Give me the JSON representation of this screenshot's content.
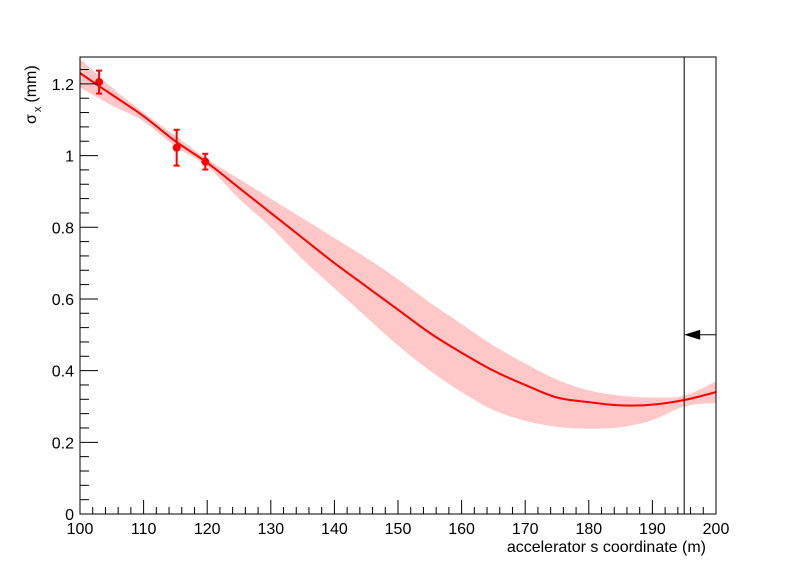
{
  "chart_data": {
    "type": "line",
    "title": "",
    "xlabel": "accelerator s coordinate (m)",
    "ylabel": {
      "symbol": "σ",
      "subscript": "x",
      "unit": "(mm)"
    },
    "xlim": [
      100,
      200
    ],
    "ylim": [
      0,
      1.275
    ],
    "x_ticks": [
      100,
      110,
      120,
      130,
      140,
      150,
      160,
      170,
      180,
      190,
      200
    ],
    "y_ticks": [
      0,
      0.2,
      0.4,
      0.6,
      0.8,
      1,
      1.2
    ],
    "x_tick_labels": [
      "100",
      "110",
      "120",
      "130",
      "140",
      "150",
      "160",
      "170",
      "180",
      "190",
      "200"
    ],
    "y_tick_labels": [
      "0",
      "0.2",
      "0.4",
      "0.6",
      "0.8",
      "1",
      "1.2"
    ],
    "grid": false,
    "series": [
      {
        "kind": "measurements",
        "color": "#ff0000",
        "points": [
          {
            "x": 103.0,
            "y": 1.205,
            "yerr": 0.032
          },
          {
            "x": 115.2,
            "y": 1.022,
            "yerr": 0.05
          },
          {
            "x": 119.7,
            "y": 0.983,
            "yerr": 0.022
          }
        ]
      },
      {
        "kind": "fit",
        "color": "#ff0000",
        "x": [
          100,
          105,
          110,
          115,
          120,
          125,
          130,
          135,
          140,
          145,
          150,
          155,
          160,
          165,
          170,
          175,
          180,
          185,
          190,
          195,
          200
        ],
        "y": [
          1.23,
          1.17,
          1.11,
          1.04,
          0.98,
          0.91,
          0.84,
          0.77,
          0.7,
          0.635,
          0.57,
          0.505,
          0.45,
          0.4,
          0.36,
          0.325,
          0.312,
          0.303,
          0.305,
          0.318,
          0.34
        ]
      },
      {
        "kind": "uncertainty-band",
        "color": "#ffc8c8",
        "x": [
          100,
          105,
          110,
          115,
          120,
          125,
          130,
          135,
          140,
          145,
          150,
          155,
          160,
          165,
          170,
          175,
          180,
          185,
          190,
          195,
          200
        ],
        "upper": [
          1.27,
          1.19,
          1.12,
          1.055,
          0.99,
          0.935,
          0.88,
          0.825,
          0.77,
          0.715,
          0.655,
          0.59,
          0.53,
          0.47,
          0.42,
          0.375,
          0.345,
          0.33,
          0.325,
          0.33,
          0.37
        ],
        "lower": [
          1.19,
          1.14,
          1.095,
          1.025,
          0.97,
          0.88,
          0.8,
          0.71,
          0.63,
          0.55,
          0.47,
          0.4,
          0.34,
          0.29,
          0.26,
          0.243,
          0.238,
          0.242,
          0.262,
          0.3,
          0.31
        ]
      }
    ],
    "annotations": [
      {
        "kind": "vertical-line",
        "x": 195
      },
      {
        "kind": "arrow",
        "direction": "left",
        "x_from": 200,
        "x_to": 195,
        "y": 0.5
      }
    ]
  }
}
